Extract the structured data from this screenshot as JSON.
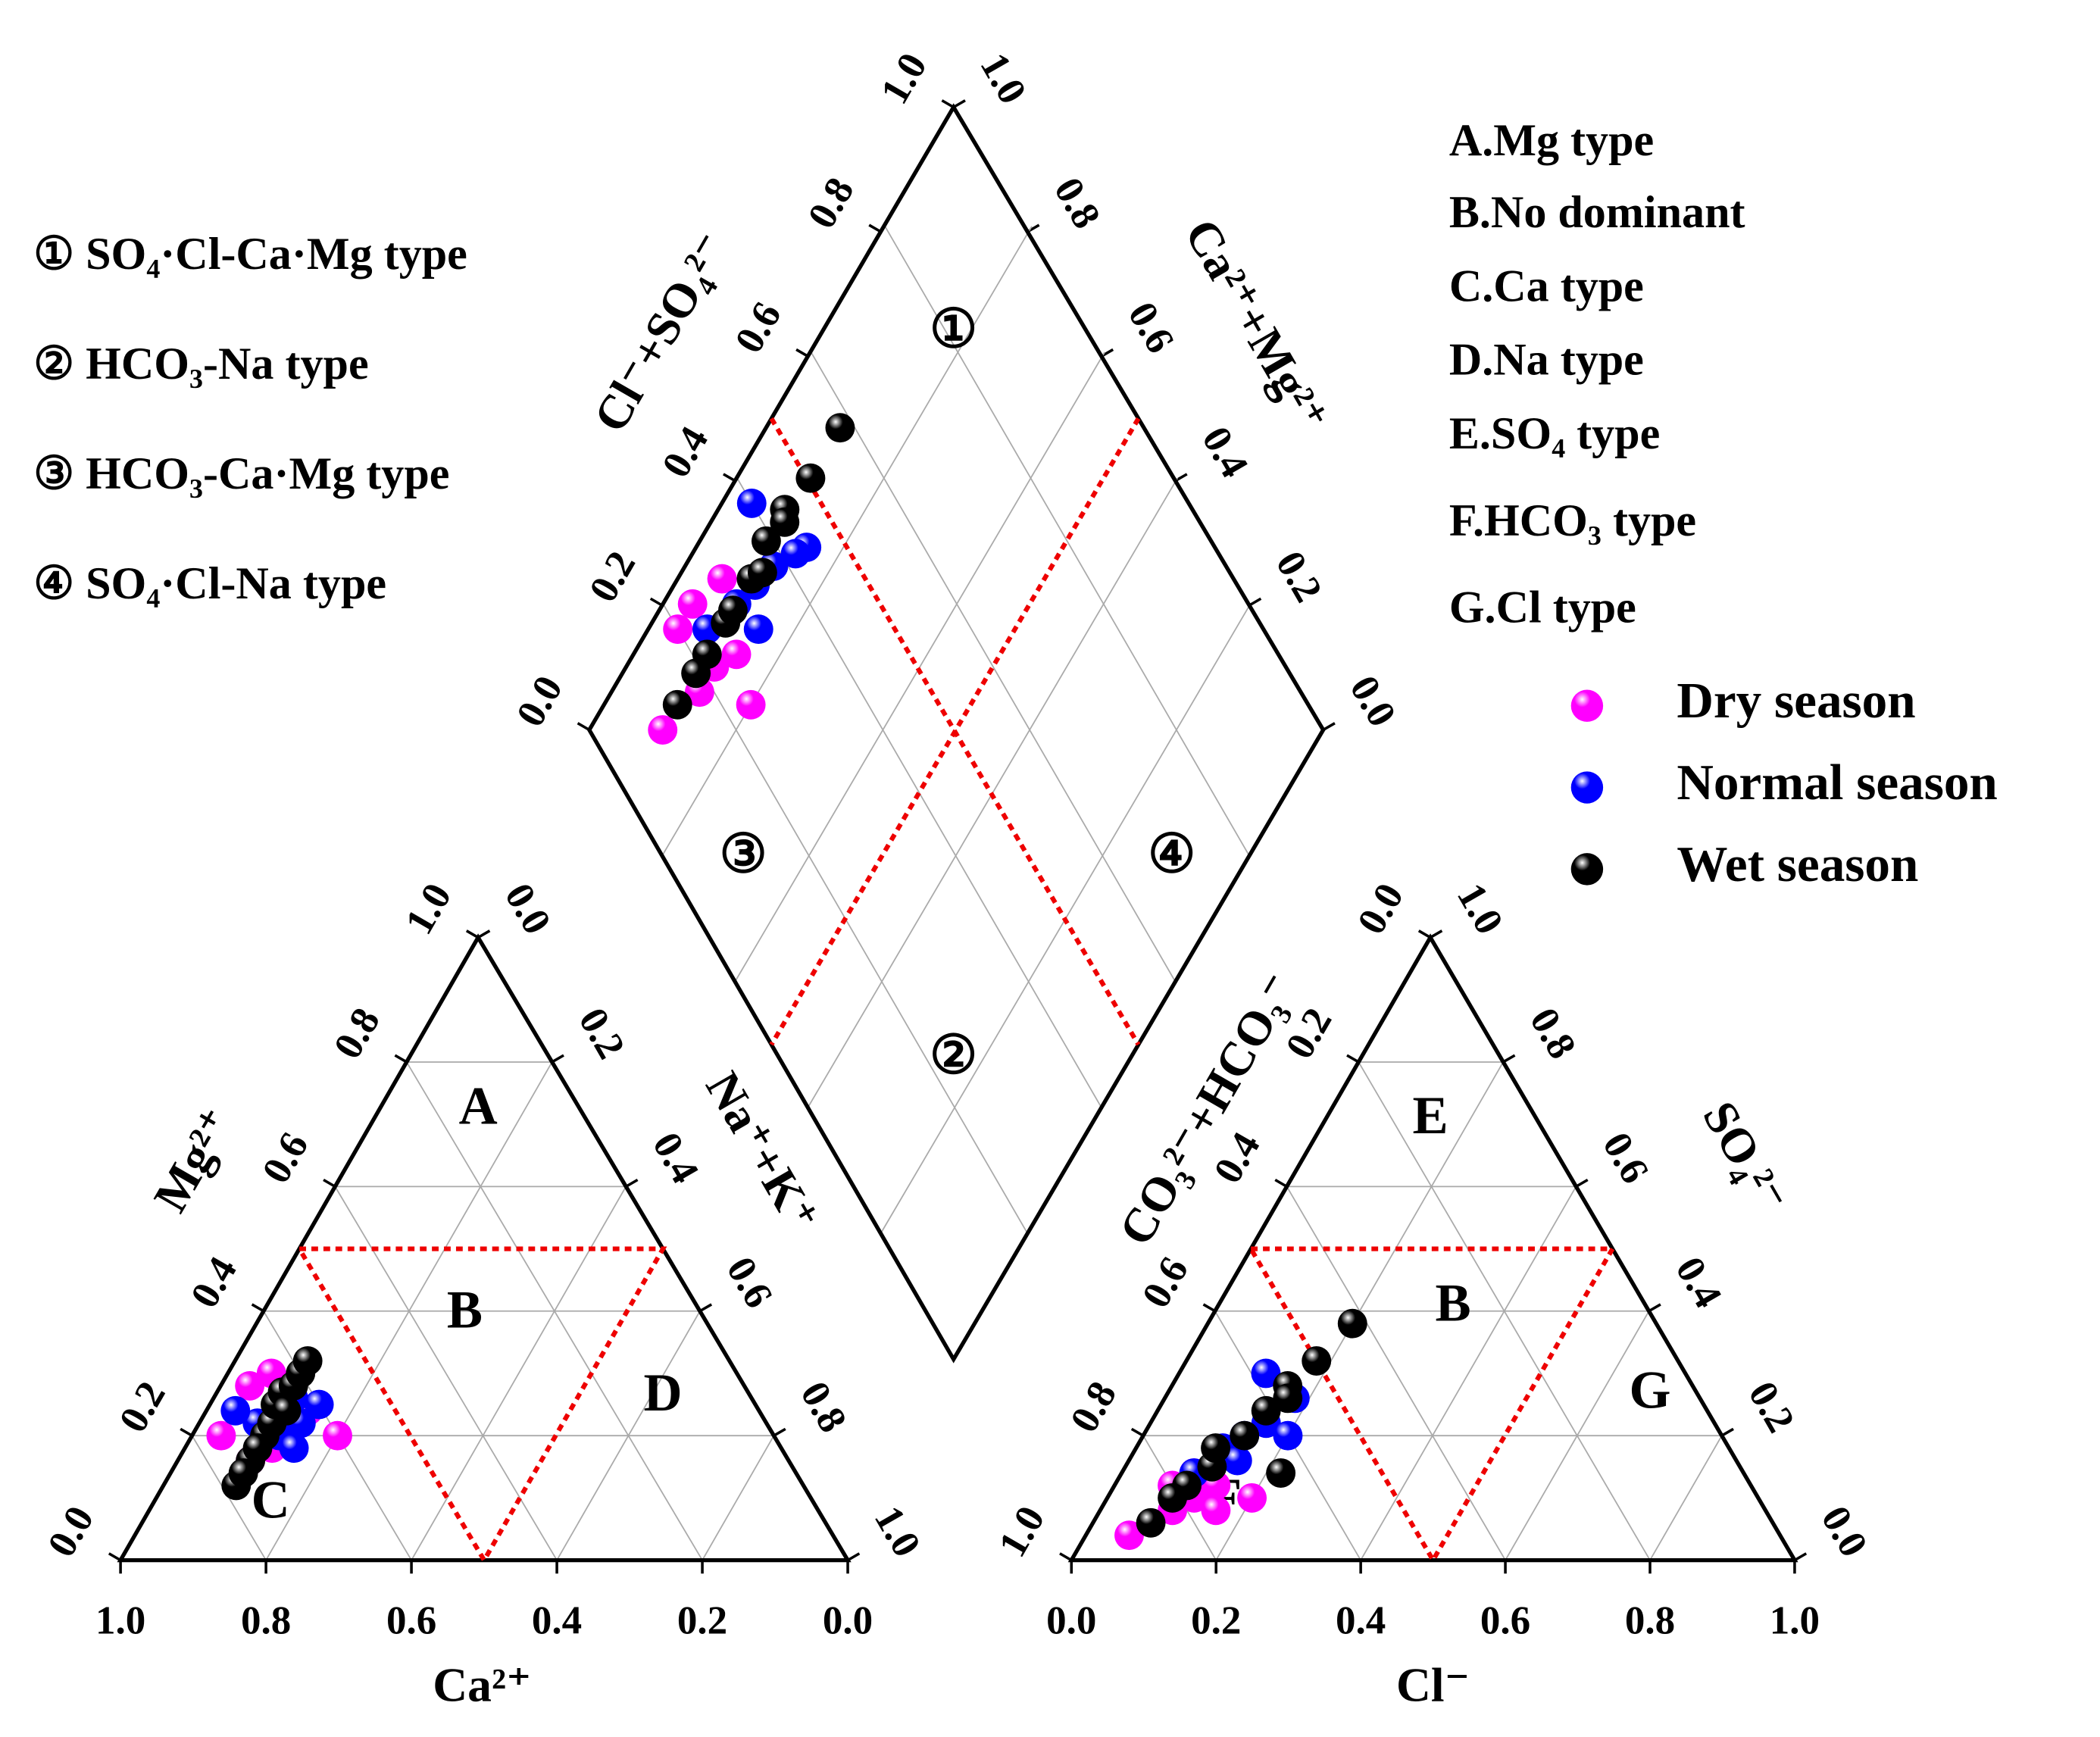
{
  "chart_data": {
    "type": "piper",
    "axis_labels": {
      "ca": "Ca²⁺",
      "mg": "Mg²⁺",
      "na_k": "Na⁺+K⁺",
      "cl": "Cl⁻",
      "so4": "SO₄²⁻",
      "hco3": "CO₃²⁻+HCO₃⁻",
      "diamond_anion": "Cl⁻+SO₄²⁻",
      "diamond_cation": "Ca²⁺+Mg²⁺"
    },
    "ticks": [
      {
        "value": 0,
        "label": "0.0"
      },
      0.2,
      0.4,
      0.6,
      0.8,
      {
        "value": 1,
        "label": "1.0"
      }
    ],
    "zones": {
      "cation": [
        "A",
        "B",
        "C",
        "D"
      ],
      "anion": [
        "E",
        "B",
        "F",
        "G"
      ],
      "diamond": [
        "①",
        "②",
        "③",
        "④"
      ]
    },
    "water_types": [
      "① SO₄·Cl-Ca·Mg type",
      "② HCO₃-Na type",
      "③ HCO₃-Ca·Mg type",
      "④ SO₄·Cl-Na type"
    ],
    "zone_types": [
      "A.Mg type",
      "B.No dominant",
      "C.Ca type",
      "D.Na type",
      "E.SO₄ type",
      "F.HCO₃ type",
      "G.Cl type"
    ],
    "series": [
      {
        "name": "Dry season",
        "color": "#ff00ff",
        "ca": [
          0.74,
          0.7,
          0.66,
          0.62,
          0.68,
          0.64,
          0.76,
          0.6
        ],
        "mg": [
          0.16,
          0.18,
          0.22,
          0.24,
          0.28,
          0.3,
          0.2,
          0.2
        ],
        "cl": [
          0.06,
          0.1,
          0.12,
          0.14,
          0.16,
          0.2,
          0.08,
          0.1
        ],
        "so4": [
          0.04,
          0.08,
          0.1,
          0.12,
          0.08,
          0.1,
          0.12,
          0.14
        ]
      },
      {
        "name": "Normal season",
        "color": "#0000ff",
        "ca": [
          0.7,
          0.66,
          0.63,
          0.68,
          0.6,
          0.72,
          0.64,
          0.67
        ],
        "mg": [
          0.22,
          0.24,
          0.26,
          0.2,
          0.25,
          0.24,
          0.22,
          0.18
        ],
        "cl": [
          0.1,
          0.12,
          0.14,
          0.16,
          0.18,
          0.2,
          0.12,
          0.15
        ],
        "so4": [
          0.14,
          0.18,
          0.2,
          0.22,
          0.26,
          0.2,
          0.3,
          0.16
        ]
      },
      {
        "name": "Wet season",
        "color": "#000000",
        "ca": [
          0.78,
          0.74,
          0.7,
          0.68,
          0.66,
          0.64,
          0.62,
          0.6,
          0.72,
          0.65,
          0.58,
          0.76
        ],
        "mg": [
          0.12,
          0.16,
          0.2,
          0.22,
          0.25,
          0.27,
          0.28,
          0.3,
          0.18,
          0.24,
          0.32,
          0.14
        ],
        "cl": [
          0.08,
          0.1,
          0.12,
          0.14,
          0.15,
          0.16,
          0.18,
          0.2,
          0.11,
          0.22,
          0.17,
          0.09
        ],
        "so4": [
          0.06,
          0.12,
          0.15,
          0.2,
          0.24,
          0.28,
          0.32,
          0.38,
          0.18,
          0.14,
          0.26,
          0.1
        ]
      }
    ]
  }
}
